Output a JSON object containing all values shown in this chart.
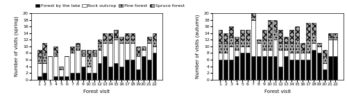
{
  "spring_categories": [
    1,
    2,
    3,
    4,
    5,
    6,
    7,
    8,
    9,
    10,
    11,
    12,
    13,
    14,
    15,
    16,
    17,
    18,
    19,
    20,
    21,
    22
  ],
  "spring_forest_lake": [
    1,
    2,
    0,
    1,
    1,
    1,
    2,
    2,
    4,
    2,
    2,
    5,
    7,
    4,
    5,
    4,
    6,
    6,
    3,
    7,
    6,
    8
  ],
  "spring_rock_outcrop": [
    4,
    3,
    7,
    6,
    2,
    6,
    6,
    7,
    3,
    2,
    5,
    4,
    4,
    7,
    7,
    7,
    5,
    5,
    4,
    2,
    5,
    2
  ],
  "spring_pine_forest": [
    2,
    3,
    0,
    1,
    1,
    0,
    1,
    1,
    1,
    3,
    1,
    2,
    1,
    1,
    1,
    1,
    1,
    1,
    1,
    1,
    1,
    2
  ],
  "spring_spruce_forest": [
    2,
    3,
    0,
    2,
    0,
    0,
    1,
    1,
    1,
    2,
    1,
    1,
    2,
    2,
    2,
    1,
    2,
    2,
    2,
    0,
    1,
    2
  ],
  "autumn_categories": [
    1,
    2,
    3,
    4,
    5,
    6,
    7,
    8,
    9,
    10,
    11,
    12,
    13,
    14,
    15,
    16,
    17,
    18,
    19,
    20,
    21,
    22
  ],
  "autumn_forest_lake": [
    6,
    6,
    6,
    7,
    8,
    8,
    7,
    7,
    7,
    7,
    7,
    4,
    7,
    6,
    6,
    6,
    6,
    9,
    8,
    3,
    7,
    7
  ],
  "autumn_rock_outcrop": [
    2,
    2,
    4,
    2,
    2,
    2,
    11,
    4,
    2,
    2,
    5,
    5,
    2,
    2,
    2,
    2,
    2,
    2,
    2,
    2,
    5,
    5
  ],
  "autumn_pine_forest": [
    3,
    3,
    3,
    2,
    2,
    2,
    1,
    1,
    3,
    4,
    3,
    2,
    2,
    3,
    4,
    1,
    4,
    3,
    1,
    2,
    1,
    2
  ],
  "autumn_spruce_forest": [
    4,
    3,
    3,
    2,
    3,
    3,
    1,
    0,
    3,
    5,
    3,
    4,
    2,
    4,
    4,
    2,
    5,
    3,
    0,
    2,
    1,
    0
  ],
  "color_forest_lake": "#000000",
  "color_rock_outcrop": "#ffffff",
  "color_pine_forest": "#aaaaaa",
  "color_spruce_forest": "#aaaaaa",
  "hatch_forest_lake": "",
  "hatch_rock_outcrop": "",
  "hatch_pine_forest": "....",
  "hatch_spruce_forest": "xxxx",
  "edge_color": "#000000",
  "spring_ylabel": "Number of visits (spring)",
  "autumn_ylabel": "Number of visits (autumn)",
  "xlabel": "Forest visit",
  "ylim": [
    0,
    20
  ],
  "yticks": [
    0,
    2,
    4,
    6,
    8,
    10,
    12,
    14,
    16,
    18,
    20
  ],
  "legend_labels": [
    "Forest by the lake",
    "Rock outcrop",
    "Pine forest",
    "Spruce forest"
  ],
  "label_fontsize": 5,
  "tick_fontsize": 4.5,
  "legend_fontsize": 4.5,
  "bar_width": 0.75
}
